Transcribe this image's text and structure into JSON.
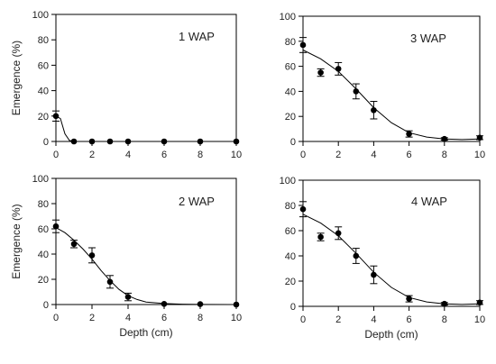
{
  "shared": {
    "ylabel": "Emergence (%)",
    "xlabel": "Depth (cm)"
  },
  "chart_data": [
    {
      "type": "scatter",
      "title": "1 WAP",
      "xlim": [
        0,
        10
      ],
      "ylim": [
        0,
        100
      ],
      "xticks": [
        0,
        2,
        4,
        6,
        8,
        10
      ],
      "yticks": [
        0,
        20,
        40,
        60,
        80,
        100
      ],
      "ylabel": "Emergence (%)",
      "xlabel": "",
      "points": [
        {
          "x": 0,
          "y": 20,
          "err": 4
        },
        {
          "x": 1,
          "y": 0,
          "err": 0
        },
        {
          "x": 2,
          "y": 0,
          "err": 0
        },
        {
          "x": 3,
          "y": 0,
          "err": 0
        },
        {
          "x": 4,
          "y": 0,
          "err": 0
        },
        {
          "x": 6,
          "y": 0,
          "err": 0
        },
        {
          "x": 8,
          "y": 0,
          "err": 0
        },
        {
          "x": 10,
          "y": 0,
          "err": 0
        }
      ],
      "curve": [
        [
          0,
          20
        ],
        [
          0.25,
          18
        ],
        [
          0.5,
          6
        ],
        [
          0.75,
          0.8
        ],
        [
          1,
          0
        ],
        [
          10,
          0
        ]
      ]
    },
    {
      "type": "scatter",
      "title": "3 WAP",
      "xlim": [
        0,
        10
      ],
      "ylim": [
        0,
        100
      ],
      "xticks": [
        0,
        2,
        4,
        6,
        8,
        10
      ],
      "yticks": [
        0,
        20,
        40,
        60,
        80,
        100
      ],
      "ylabel": "",
      "xlabel": "",
      "points": [
        {
          "x": 0,
          "y": 77,
          "err": 6
        },
        {
          "x": 1,
          "y": 55,
          "err": 3
        },
        {
          "x": 2,
          "y": 58,
          "err": 5
        },
        {
          "x": 3,
          "y": 40,
          "err": 6
        },
        {
          "x": 4,
          "y": 25,
          "err": 7
        },
        {
          "x": 6,
          "y": 6,
          "err": 2.5
        },
        {
          "x": 8,
          "y": 2,
          "err": 1
        },
        {
          "x": 10,
          "y": 3,
          "err": 1.5
        }
      ],
      "curve": [
        [
          0,
          73
        ],
        [
          1,
          66
        ],
        [
          2,
          56
        ],
        [
          3,
          42
        ],
        [
          4,
          27
        ],
        [
          5,
          15
        ],
        [
          6,
          7
        ],
        [
          7,
          3.5
        ],
        [
          8,
          2
        ],
        [
          9,
          1.5
        ],
        [
          10,
          2
        ]
      ]
    },
    {
      "type": "scatter",
      "title": "2 WAP",
      "xlim": [
        0,
        10
      ],
      "ylim": [
        0,
        100
      ],
      "xticks": [
        0,
        2,
        4,
        6,
        8,
        10
      ],
      "yticks": [
        0,
        20,
        40,
        60,
        80,
        100
      ],
      "ylabel": "Emergence (%)",
      "xlabel": "Depth (cm)",
      "points": [
        {
          "x": 0,
          "y": 62,
          "err": 5
        },
        {
          "x": 1,
          "y": 48,
          "err": 3
        },
        {
          "x": 2,
          "y": 39,
          "err": 6
        },
        {
          "x": 3,
          "y": 18,
          "err": 5
        },
        {
          "x": 4,
          "y": 6,
          "err": 3
        },
        {
          "x": 6,
          "y": 0.5,
          "err": 0
        },
        {
          "x": 8,
          "y": 0.3,
          "err": 0
        },
        {
          "x": 10,
          "y": 0,
          "err": 0
        }
      ],
      "curve": [
        [
          0,
          61
        ],
        [
          0.5,
          57
        ],
        [
          1,
          51
        ],
        [
          1.5,
          44
        ],
        [
          2,
          36
        ],
        [
          2.5,
          27
        ],
        [
          3,
          19
        ],
        [
          3.5,
          12
        ],
        [
          4,
          7
        ],
        [
          4.5,
          4
        ],
        [
          5,
          2
        ],
        [
          6,
          0.8
        ],
        [
          7,
          0.3
        ],
        [
          8,
          0.1
        ],
        [
          10,
          0
        ]
      ]
    },
    {
      "type": "scatter",
      "title": "4 WAP",
      "xlim": [
        0,
        10
      ],
      "ylim": [
        0,
        100
      ],
      "xticks": [
        0,
        2,
        4,
        6,
        8,
        10
      ],
      "yticks": [
        0,
        20,
        40,
        60,
        80,
        100
      ],
      "ylabel": "",
      "xlabel": "Depth (cm)",
      "points": [
        {
          "x": 0,
          "y": 77,
          "err": 6
        },
        {
          "x": 1,
          "y": 55,
          "err": 3
        },
        {
          "x": 2,
          "y": 58,
          "err": 5
        },
        {
          "x": 3,
          "y": 40,
          "err": 6
        },
        {
          "x": 4,
          "y": 25,
          "err": 7
        },
        {
          "x": 6,
          "y": 6,
          "err": 2.5
        },
        {
          "x": 8,
          "y": 2,
          "err": 1
        },
        {
          "x": 10,
          "y": 3,
          "err": 1.5
        }
      ],
      "curve": [
        [
          0,
          73
        ],
        [
          1,
          66
        ],
        [
          2,
          56
        ],
        [
          3,
          42
        ],
        [
          4,
          27
        ],
        [
          5,
          15
        ],
        [
          6,
          7
        ],
        [
          7,
          3.5
        ],
        [
          8,
          2
        ],
        [
          9,
          1.5
        ],
        [
          10,
          2
        ]
      ]
    }
  ]
}
